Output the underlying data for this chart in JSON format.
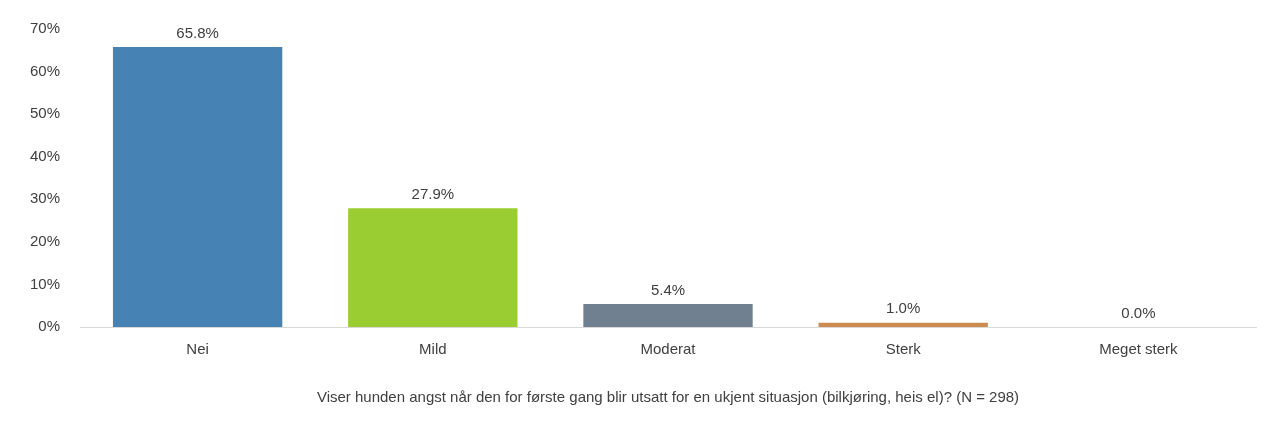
{
  "chart_data": {
    "type": "bar",
    "xlabel": "Viser hunden angst når den for første gang blir utsatt for en ukjent situasjon (bilkjøring, heis el)? (N = 298)",
    "categories": [
      "Nei",
      "Mild",
      "Moderat",
      "Sterk",
      "Meget sterk"
    ],
    "values": [
      65.8,
      27.9,
      5.4,
      1.0,
      0.0
    ],
    "colors": [
      "#4682b4",
      "#9acd32",
      "#708090",
      "#cd8b4f",
      "#5b9bd5"
    ],
    "value_labels": [
      "65.8%",
      "27.9%",
      "5.4%",
      "1.0%",
      "0.0%"
    ],
    "ylim": [
      0,
      70
    ],
    "yticks": [
      {
        "value": 0,
        "label": "0%"
      },
      {
        "value": 10,
        "label": "10%"
      },
      {
        "value": 20,
        "label": "20%"
      },
      {
        "value": 30,
        "label": "30%"
      },
      {
        "value": 40,
        "label": "40%"
      },
      {
        "value": 50,
        "label": "50%"
      },
      {
        "value": 60,
        "label": "60%"
      },
      {
        "value": 70,
        "label": "70%"
      }
    ],
    "grid": false,
    "legend": false
  }
}
